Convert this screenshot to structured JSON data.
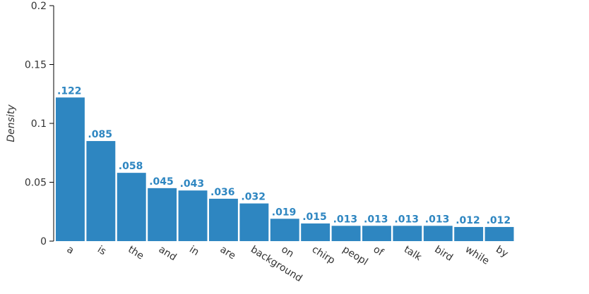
{
  "chart_data": {
    "type": "bar",
    "y_label": "Density",
    "categories": [
      "a",
      "is",
      "the",
      "and",
      "in",
      "are",
      "background",
      "on",
      "chirp",
      "peopl",
      "of",
      "talk",
      "bird",
      "while",
      "by"
    ],
    "values": [
      0.122,
      0.085,
      0.058,
      0.045,
      0.043,
      0.036,
      0.032,
      0.019,
      0.015,
      0.013,
      0.013,
      0.013,
      0.013,
      0.012,
      0.012
    ],
    "value_labels": [
      ".122",
      ".085",
      ".058",
      ".045",
      ".043",
      ".036",
      ".032",
      ".019",
      ".015",
      ".013",
      ".013",
      ".013",
      ".013",
      ".012",
      ".012"
    ],
    "color": "#2e86c1",
    "ylim": [
      0,
      0.2
    ],
    "yticks": [
      0,
      0.05,
      0.1,
      0.15,
      0.2
    ],
    "grid": false
  }
}
